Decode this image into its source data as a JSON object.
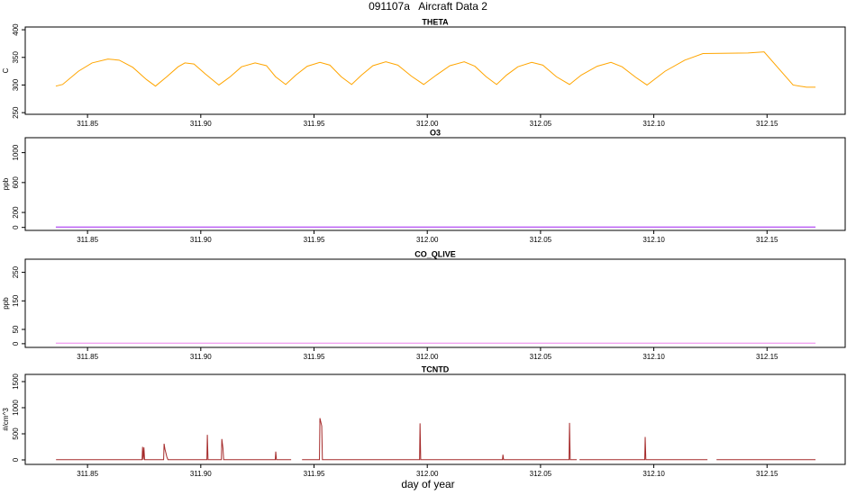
{
  "title": "091107a   Aircraft Data 2",
  "xlabel": "day of year",
  "chart_data": [
    {
      "type": "line",
      "title": "THETA",
      "ylabel": "C",
      "xlim": [
        311.8225,
        312.1845
      ],
      "xticks": [
        311.85,
        311.9,
        311.95,
        312.0,
        312.05,
        312.1,
        312.15
      ],
      "xtick_labels": [
        "311.85",
        "311.90",
        "311.95",
        "312.00",
        "312.05",
        "312.10",
        "312.15"
      ],
      "ylim": [
        247,
        405
      ],
      "yticks": [
        250,
        300,
        350,
        400
      ],
      "x": [
        311.836,
        311.839,
        311.846,
        311.852,
        311.859,
        311.864,
        311.87,
        311.876,
        311.88,
        311.885,
        311.89,
        311.893,
        311.897,
        311.902,
        311.908,
        311.913,
        311.918,
        311.924,
        311.929,
        311.933,
        311.9375,
        311.942,
        311.947,
        311.9526,
        311.957,
        311.962,
        311.9666,
        311.971,
        311.976,
        311.9817,
        311.987,
        311.993,
        311.9984,
        312.004,
        312.01,
        312.0163,
        312.021,
        312.026,
        312.0306,
        312.035,
        312.04,
        312.0461,
        312.051,
        312.057,
        312.0628,
        312.068,
        312.075,
        312.0811,
        312.086,
        312.092,
        312.097,
        312.105,
        312.1137,
        312.1217,
        312.1416,
        312.1487,
        312.1615,
        312.1674,
        312.1714
      ],
      "series": [
        {
          "name": "THETA",
          "color": "#ffa500",
          "values": [
            298,
            301,
            325,
            340,
            347,
            345,
            332,
            310,
            298,
            315,
            333,
            340,
            338,
            320,
            300,
            315,
            333,
            340,
            335,
            315,
            301,
            318,
            334,
            341,
            336,
            315,
            301,
            318,
            335,
            342,
            336,
            316,
            301,
            318,
            335,
            342,
            334,
            315,
            301,
            318,
            333,
            341,
            336,
            315,
            301,
            318,
            334,
            341,
            333,
            314,
            300,
            325,
            345,
            357,
            358,
            360,
            300,
            296,
            296
          ]
        }
      ]
    },
    {
      "type": "line",
      "title": "O3",
      "ylabel": "ppb",
      "xlim": [
        311.8225,
        312.1845
      ],
      "xticks": [
        311.85,
        311.9,
        311.95,
        312.0,
        312.05,
        312.1,
        312.15
      ],
      "xtick_labels": [
        "311.85",
        "311.90",
        "311.95",
        "312.00",
        "312.05",
        "312.10",
        "312.15"
      ],
      "ylim": [
        -40,
        1200
      ],
      "yticks": [
        0,
        200,
        600,
        1000
      ],
      "x": [
        311.836,
        312.1714
      ],
      "series": [
        {
          "name": "O3",
          "color": "#a020f0",
          "values": [
            5,
            5
          ]
        }
      ]
    },
    {
      "type": "line",
      "title": "CO_QLIVE",
      "ylabel": "ppb",
      "xlim": [
        311.8225,
        312.1845
      ],
      "xticks": [
        311.85,
        311.9,
        311.95,
        312.0,
        312.05,
        312.1,
        312.15
      ],
      "xtick_labels": [
        "311.85",
        "311.90",
        "311.95",
        "312.00",
        "312.05",
        "312.10",
        "312.15"
      ],
      "ylim": [
        -13,
        296
      ],
      "yticks": [
        0,
        50,
        150,
        250
      ],
      "x": [
        311.836,
        312.1714
      ],
      "series": [
        {
          "name": "CO_QLIVE",
          "color": "#ee82ee",
          "values": [
            2,
            2
          ]
        }
      ]
    },
    {
      "type": "line",
      "title": "TCNTD",
      "ylabel": "#/cm^3",
      "xlim": [
        311.8225,
        312.1845
      ],
      "xticks": [
        311.85,
        311.9,
        311.95,
        312.0,
        312.05,
        312.1,
        312.15
      ],
      "xtick_labels": [
        "311.85",
        "311.90",
        "311.95",
        "312.00",
        "312.05",
        "312.10",
        "312.15"
      ],
      "ylim": [
        -86,
        1638
      ],
      "yticks": [
        0,
        500,
        1000,
        1500
      ],
      "x": [
        311.8361,
        311.8741,
        311.8743,
        311.8746,
        311.8749,
        311.8752,
        311.8836,
        311.8838,
        311.8842,
        311.8845,
        311.885,
        311.8855,
        311.9027,
        311.9029,
        311.9032,
        311.9091,
        311.9093,
        311.9098,
        311.9101,
        311.9329,
        311.9331,
        311.9334,
        311.9399,
        311.942,
        311.9447,
        311.9524,
        311.9526,
        311.9534,
        311.9537,
        311.9966,
        311.9968,
        311.9971,
        312.0332,
        312.0334,
        312.0337,
        312.0626,
        312.0628,
        312.0631,
        312.066,
        312.0666,
        312.0672,
        312.096,
        312.0962,
        312.0965,
        312.1237,
        312.1257,
        312.1277,
        312.1714
      ],
      "series": [
        {
          "name": "TCNTD",
          "color": "#a52a2a",
          "values": [
            5,
            5,
            250,
            5,
            240,
            5,
            5,
            310,
            200,
            150,
            60,
            5,
            5,
            480,
            5,
            5,
            400,
            220,
            5,
            5,
            160,
            5,
            5,
            null,
            5,
            5,
            800,
            650,
            5,
            5,
            700,
            5,
            5,
            100,
            5,
            5,
            710,
            5,
            5,
            null,
            5,
            5,
            440,
            5,
            5,
            null,
            5,
            5
          ]
        }
      ]
    }
  ]
}
